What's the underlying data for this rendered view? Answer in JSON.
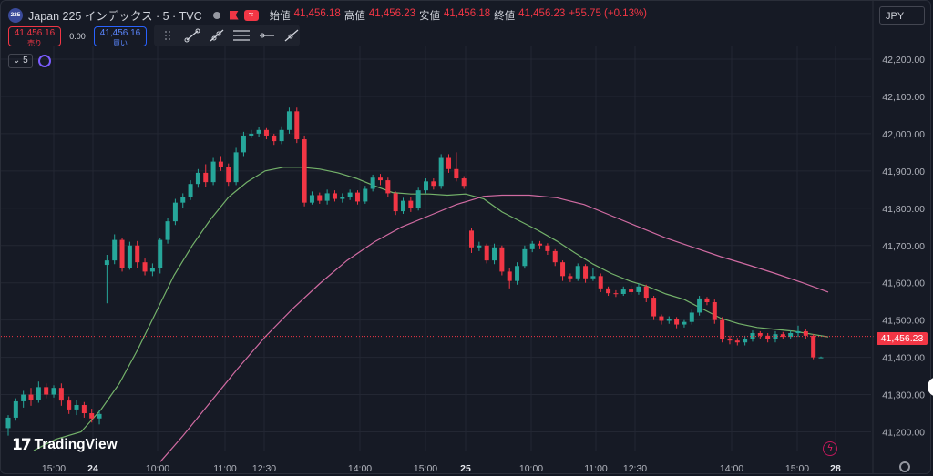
{
  "header": {
    "symbol_badge": "225",
    "symbol": "Japan 225 インデックス · 5 · TVC",
    "ohlc": [
      {
        "label": "始値",
        "value": "41,456.18"
      },
      {
        "label": "高値",
        "value": "41,456.23"
      },
      {
        "label": "安値",
        "value": "41,456.18"
      },
      {
        "label": "終値",
        "value": "41,456.23"
      },
      {
        "label": "",
        "value": "+55.75 (+0.13%)"
      }
    ],
    "currency": "JPY"
  },
  "trade": {
    "sell_price": "41,456.16",
    "sell_label": "売り",
    "spread": "0.00",
    "buy_price": "41,456.16",
    "buy_label": "買い"
  },
  "indicators": {
    "count": "5"
  },
  "logo": {
    "mark": "17",
    "text": "TradingView"
  },
  "colors": {
    "background": "#161a25",
    "up": "#26a69a",
    "down": "#f23645",
    "ma_fast": "#74b26a",
    "ma_slow": "#d06ba2",
    "grid": "#232733"
  },
  "chart_data": {
    "type": "candlestick",
    "y_axis": {
      "ticks": [
        41200,
        41300,
        41400,
        41500,
        41600,
        41700,
        41800,
        41900,
        42000,
        42100,
        42200
      ],
      "tick_labels": [
        "41,200.00",
        "41,300.00",
        "41,400.00",
        "41,500.00",
        "41,600.00",
        "41,700.00",
        "41,800.00",
        "41,900.00",
        "42,000.00",
        "42,100.00",
        "42,200.00"
      ]
    },
    "x_axis": {
      "labels": [
        "15:00",
        "24",
        "10:00",
        "11:00",
        "12:30",
        "14:00",
        "15:00",
        "25",
        "10:00",
        "11:00",
        "12:30",
        "14:00",
        "15:00",
        "28"
      ],
      "bold": [
        "24",
        "25",
        "28"
      ]
    },
    "last_price": 41456.23,
    "last_price_label": "41,456.23",
    "candles": [
      [
        41210,
        41238,
        41190,
        41245
      ],
      [
        41238,
        41282,
        41230,
        41290
      ],
      [
        41282,
        41300,
        41265,
        41310
      ],
      [
        41300,
        41285,
        41270,
        41318
      ],
      [
        41285,
        41320,
        41278,
        41335
      ],
      [
        41320,
        41300,
        41290,
        41330
      ],
      [
        41300,
        41318,
        41292,
        41325
      ],
      [
        41318,
        41284,
        41270,
        41330
      ],
      [
        41284,
        41260,
        41248,
        41295
      ],
      [
        41260,
        41272,
        41245,
        41285
      ],
      [
        41272,
        41250,
        41238,
        41280
      ],
      [
        41250,
        41236,
        41225,
        41262
      ],
      [
        41236,
        41248,
        41220,
        41258
      ],
      [
        41648,
        41660,
        41545,
        41675
      ],
      [
        41660,
        41715,
        41650,
        41730
      ],
      [
        41715,
        41640,
        41630,
        41720
      ],
      [
        41640,
        41700,
        41635,
        41710
      ],
      [
        41700,
        41655,
        41640,
        41712
      ],
      [
        41655,
        41630,
        41620,
        41665
      ],
      [
        41630,
        41640,
        41618,
        41652
      ],
      [
        41640,
        41715,
        41625,
        41720
      ],
      [
        41715,
        41765,
        41705,
        41775
      ],
      [
        41765,
        41815,
        41755,
        41825
      ],
      [
        41815,
        41830,
        41800,
        41840
      ],
      [
        41830,
        41865,
        41822,
        41875
      ],
      [
        41865,
        41895,
        41855,
        41905
      ],
      [
        41895,
        41870,
        41858,
        41918
      ],
      [
        41870,
        41925,
        41862,
        41935
      ],
      [
        41925,
        41910,
        41900,
        41940
      ],
      [
        41910,
        41870,
        41860,
        41920
      ],
      [
        41870,
        41950,
        41862,
        41962
      ],
      [
        41950,
        41995,
        41940,
        42005
      ],
      [
        41995,
        42000,
        41988,
        42010
      ],
      [
        42000,
        42010,
        41990,
        42018
      ],
      [
        42010,
        41995,
        41985,
        42015
      ],
      [
        41995,
        41980,
        41970,
        42000
      ],
      [
        41980,
        42010,
        41972,
        42020
      ],
      [
        42010,
        42060,
        42000,
        42070
      ],
      [
        42060,
        41985,
        41975,
        42070
      ],
      [
        41985,
        41815,
        41805,
        41995
      ],
      [
        41815,
        41835,
        41810,
        41845
      ],
      [
        41835,
        41820,
        41812,
        41842
      ],
      [
        41820,
        41840,
        41810,
        41850
      ],
      [
        41840,
        41825,
        41818,
        41848
      ],
      [
        41825,
        41830,
        41815,
        41840
      ],
      [
        41830,
        41842,
        41822,
        41850
      ],
      [
        41842,
        41818,
        41810,
        41848
      ],
      [
        41818,
        41852,
        41812,
        41860
      ],
      [
        41852,
        41882,
        41845,
        41890
      ],
      [
        41882,
        41875,
        41862,
        41892
      ],
      [
        41875,
        41840,
        41830,
        41882
      ],
      [
        41840,
        41792,
        41782,
        41845
      ],
      [
        41792,
        41820,
        41785,
        41828
      ],
      [
        41820,
        41800,
        41790,
        41830
      ],
      [
        41800,
        41848,
        41794,
        41855
      ],
      [
        41848,
        41872,
        41840,
        41880
      ],
      [
        41872,
        41860,
        41850,
        41880
      ],
      [
        41860,
        41935,
        41852,
        41945
      ],
      [
        41935,
        41905,
        41895,
        41945
      ],
      [
        41905,
        41880,
        41872,
        41950
      ],
      [
        41880,
        41860,
        41852,
        41886
      ],
      [
        41740,
        41695,
        41680,
        41748
      ],
      [
        41695,
        41700,
        41685,
        41710
      ],
      [
        41700,
        41660,
        41652,
        41705
      ],
      [
        41660,
        41695,
        41650,
        41705
      ],
      [
        41695,
        41630,
        41620,
        41700
      ],
      [
        41630,
        41605,
        41585,
        41640
      ],
      [
        41605,
        41645,
        41595,
        41655
      ],
      [
        41645,
        41690,
        41638,
        41700
      ],
      [
        41690,
        41705,
        41682,
        41712
      ],
      [
        41705,
        41700,
        41690,
        41712
      ],
      [
        41700,
        41685,
        41675,
        41706
      ],
      [
        41685,
        41655,
        41645,
        41690
      ],
      [
        41655,
        41618,
        41605,
        41660
      ],
      [
        41618,
        41612,
        41602,
        41625
      ],
      [
        41612,
        41645,
        41605,
        41652
      ],
      [
        41645,
        41612,
        41600,
        41650
      ],
      [
        41612,
        41618,
        41605,
        41640
      ],
      [
        41618,
        41585,
        41575,
        41625
      ],
      [
        41585,
        41572,
        41565,
        41590
      ],
      [
        41572,
        41570,
        41562,
        41580
      ],
      [
        41570,
        41582,
        41565,
        41590
      ],
      [
        41582,
        41575,
        41568,
        41592
      ],
      [
        41575,
        41590,
        41568,
        41598
      ],
      [
        41590,
        41560,
        41548,
        41595
      ],
      [
        41560,
        41510,
        41500,
        41565
      ],
      [
        41510,
        41498,
        41488,
        41515
      ],
      [
        41498,
        41502,
        41490,
        41510
      ],
      [
        41502,
        41488,
        41478,
        41508
      ],
      [
        41488,
        41495,
        41480,
        41500
      ],
      [
        41495,
        41520,
        41488,
        41528
      ],
      [
        41520,
        41558,
        41512,
        41565
      ],
      [
        41558,
        41548,
        41540,
        41562
      ],
      [
        41548,
        41500,
        41490,
        41555
      ],
      [
        41500,
        41450,
        41440,
        41508
      ],
      [
        41450,
        41445,
        41435,
        41458
      ],
      [
        41445,
        41440,
        41432,
        41452
      ],
      [
        41440,
        41450,
        41432,
        41458
      ],
      [
        41450,
        41465,
        41442,
        41472
      ],
      [
        41465,
        41458,
        41448,
        41470
      ],
      [
        41458,
        41448,
        41440,
        41465
      ],
      [
        41448,
        41462,
        41440,
        41470
      ],
      [
        41462,
        41455,
        41448,
        41468
      ],
      [
        41455,
        41465,
        41448,
        41472
      ],
      [
        41465,
        41470,
        41455,
        41485
      ],
      [
        41470,
        41458,
        41450,
        41475
      ],
      [
        41458,
        41400,
        41395,
        41462
      ],
      [
        41400,
        41400,
        41398,
        41402
      ]
    ],
    "ma_fast": [
      [
        36,
        41150
      ],
      [
        60,
        41180
      ],
      [
        88,
        41200
      ],
      [
        110,
        41260
      ],
      [
        130,
        41330
      ],
      [
        150,
        41420
      ],
      [
        170,
        41520
      ],
      [
        190,
        41620
      ],
      [
        210,
        41700
      ],
      [
        230,
        41770
      ],
      [
        250,
        41830
      ],
      [
        270,
        41870
      ],
      [
        290,
        41900
      ],
      [
        310,
        41910
      ],
      [
        330,
        41910
      ],
      [
        350,
        41905
      ],
      [
        370,
        41895
      ],
      [
        390,
        41880
      ],
      [
        410,
        41860
      ],
      [
        430,
        41842
      ],
      [
        450,
        41838
      ],
      [
        470,
        41838
      ],
      [
        490,
        41835
      ],
      [
        510,
        41838
      ],
      [
        530,
        41825
      ],
      [
        550,
        41790
      ],
      [
        570,
        41765
      ],
      [
        590,
        41740
      ],
      [
        610,
        41712
      ],
      [
        630,
        41680
      ],
      [
        650,
        41650
      ],
      [
        670,
        41625
      ],
      [
        690,
        41605
      ],
      [
        710,
        41590
      ],
      [
        730,
        41570
      ],
      [
        750,
        41555
      ],
      [
        770,
        41530
      ],
      [
        790,
        41505
      ],
      [
        810,
        41490
      ],
      [
        830,
        41480
      ],
      [
        850,
        41475
      ],
      [
        870,
        41470
      ],
      [
        890,
        41462
      ],
      [
        908,
        41455
      ]
    ],
    "ma_slow": [
      [
        175,
        41120
      ],
      [
        200,
        41190
      ],
      [
        230,
        41280
      ],
      [
        260,
        41370
      ],
      [
        290,
        41455
      ],
      [
        320,
        41530
      ],
      [
        350,
        41598
      ],
      [
        380,
        41660
      ],
      [
        410,
        41710
      ],
      [
        440,
        41750
      ],
      [
        470,
        41780
      ],
      [
        500,
        41810
      ],
      [
        530,
        41832
      ],
      [
        550,
        41835
      ],
      [
        580,
        41835
      ],
      [
        610,
        41828
      ],
      [
        640,
        41810
      ],
      [
        670,
        41780
      ],
      [
        700,
        41750
      ],
      [
        730,
        41720
      ],
      [
        760,
        41695
      ],
      [
        790,
        41670
      ],
      [
        820,
        41648
      ],
      [
        850,
        41625
      ],
      [
        880,
        41600
      ],
      [
        908,
        41575
      ]
    ]
  }
}
